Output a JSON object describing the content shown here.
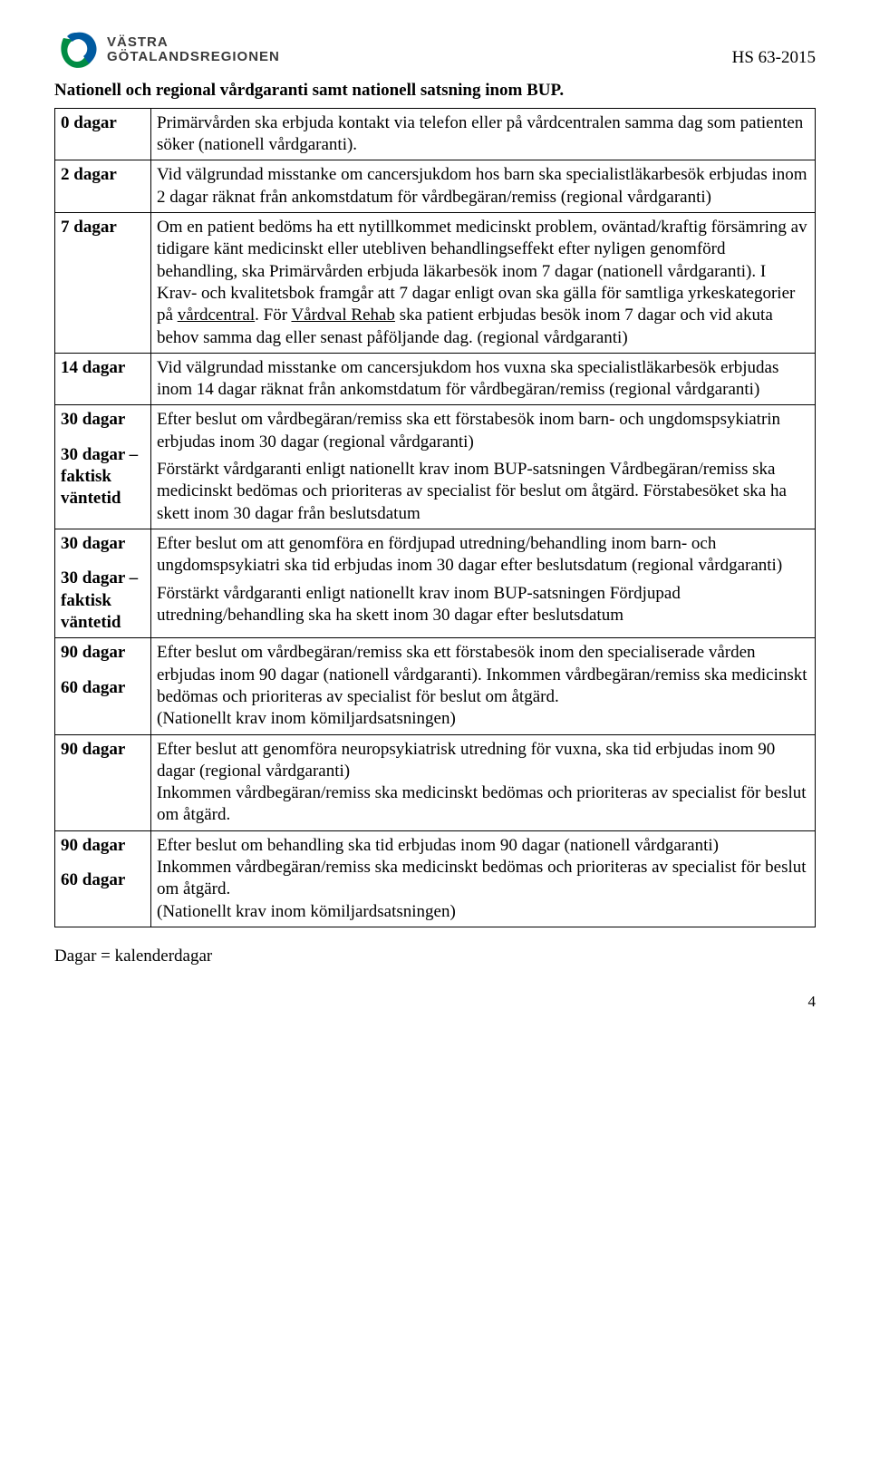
{
  "header": {
    "logo_line1": "VÄSTRA",
    "logo_line2": "GÖTALANDSREGIONEN",
    "doc_code": "HS 63-2015"
  },
  "title": "Nationell och regional vårdgaranti samt nationell satsning inom BUP.",
  "rows": [
    {
      "labels": [
        "0 dagar"
      ],
      "body": "Primärvården ska erbjuda kontakt via telefon eller på vårdcentralen samma dag som patienten söker (nationell vårdgaranti)."
    },
    {
      "labels": [
        "2 dagar"
      ],
      "body": "Vid välgrundad misstanke om cancersjukdom hos barn ska specialistläkarbesök erbjudas inom 2 dagar räknat från ankomstdatum för vårdbegäran/remiss (regional vårdgaranti)"
    },
    {
      "labels": [
        "7 dagar"
      ],
      "body_html": "Om en patient bedöms ha ett nytillkommet medicinskt problem, oväntad/kraftig försämring av tidigare känt medicinskt eller utebliven behandlingseffekt efter nyligen genomförd behandling, ska Primärvården erbjuda läkarbesök inom 7 dagar (nationell vårdgaranti). I Krav- och kvalitetsbok framgår att 7 dagar enligt ovan ska gälla för samtliga yrkeskategorier på <span class=\"u\">vårdcentral</span>. För <span class=\"u\">Vårdval Rehab</span> ska patient erbjudas besök inom 7 dagar och vid akuta behov samma dag eller senast påföljande dag. (regional vårdgaranti)"
    },
    {
      "labels": [
        "14 dagar"
      ],
      "body": "Vid välgrundad misstanke om cancersjukdom hos vuxna ska specialistläkarbesök erbjudas inom 14 dagar räknat från ankomstdatum för vårdbegäran/remiss (regional vårdgaranti)"
    },
    {
      "labels": [
        "30 dagar",
        "30 dagar – faktisk väntetid"
      ],
      "body_html": "Efter beslut om vårdbegäran/remiss ska ett förstabesök inom barn- och ungdomspsykiatrin erbjudas inom 30 dagar (regional vårdgaranti)<div class=\"sub-block\">Förstärkt vårdgaranti enligt nationellt krav inom BUP-satsningen Vårdbegäran/remiss ska medicinskt bedömas och prioriteras av specialist för beslut om åtgärd. Förstabesöket ska ha skett inom 30 dagar från beslutsdatum</div>"
    },
    {
      "labels": [
        "30 dagar",
        "30 dagar – faktisk väntetid"
      ],
      "body_html": "Efter beslut om att genomföra en fördjupad utredning/behandling inom barn- och ungdomspsykiatri ska tid erbjudas inom 30 dagar efter beslutsdatum (regional vårdgaranti)<div class=\"sub-block\">Förstärkt vårdgaranti enligt nationellt krav inom BUP-satsningen Fördjupad utredning/behandling ska ha skett inom 30 dagar efter beslutsdatum</div>"
    },
    {
      "labels": [
        "90 dagar",
        "60 dagar"
      ],
      "body_html": "Efter beslut om vårdbegäran/remiss ska ett förstabesök inom den specialiserade vården erbjudas inom 90 dagar (nationell vårdgaranti). Inkommen vårdbegäran/remiss ska medicinskt bedömas och prioriteras av specialist för beslut om åtgärd.<br>(Nationellt krav inom kömiljardsatsningen)"
    },
    {
      "labels": [
        "90 dagar"
      ],
      "body_html": "Efter beslut att genomföra neuropsykiatrisk utredning för vuxna, ska tid erbjudas inom 90 dagar (regional vårdgaranti)<br>Inkommen vårdbegäran/remiss ska medicinskt bedömas och prioriteras av specialist för beslut om åtgärd."
    },
    {
      "labels": [
        "90 dagar",
        "60 dagar"
      ],
      "body_html": "Efter beslut om behandling ska tid erbjudas inom 90 dagar (nationell vårdgaranti)<br>Inkommen vårdbegäran/remiss ska medicinskt bedömas och prioriteras av specialist för beslut om åtgärd.<br>(Nationellt krav inom kömiljardsatsningen)"
    }
  ],
  "footer_note": "Dagar = kalenderdagar",
  "page_number": "4",
  "colors": {
    "text": "#000000",
    "background": "#ffffff",
    "border": "#000000",
    "logo_green": "#008c44",
    "logo_blue": "#005aa0",
    "logo_text": "#3a3a3a"
  }
}
